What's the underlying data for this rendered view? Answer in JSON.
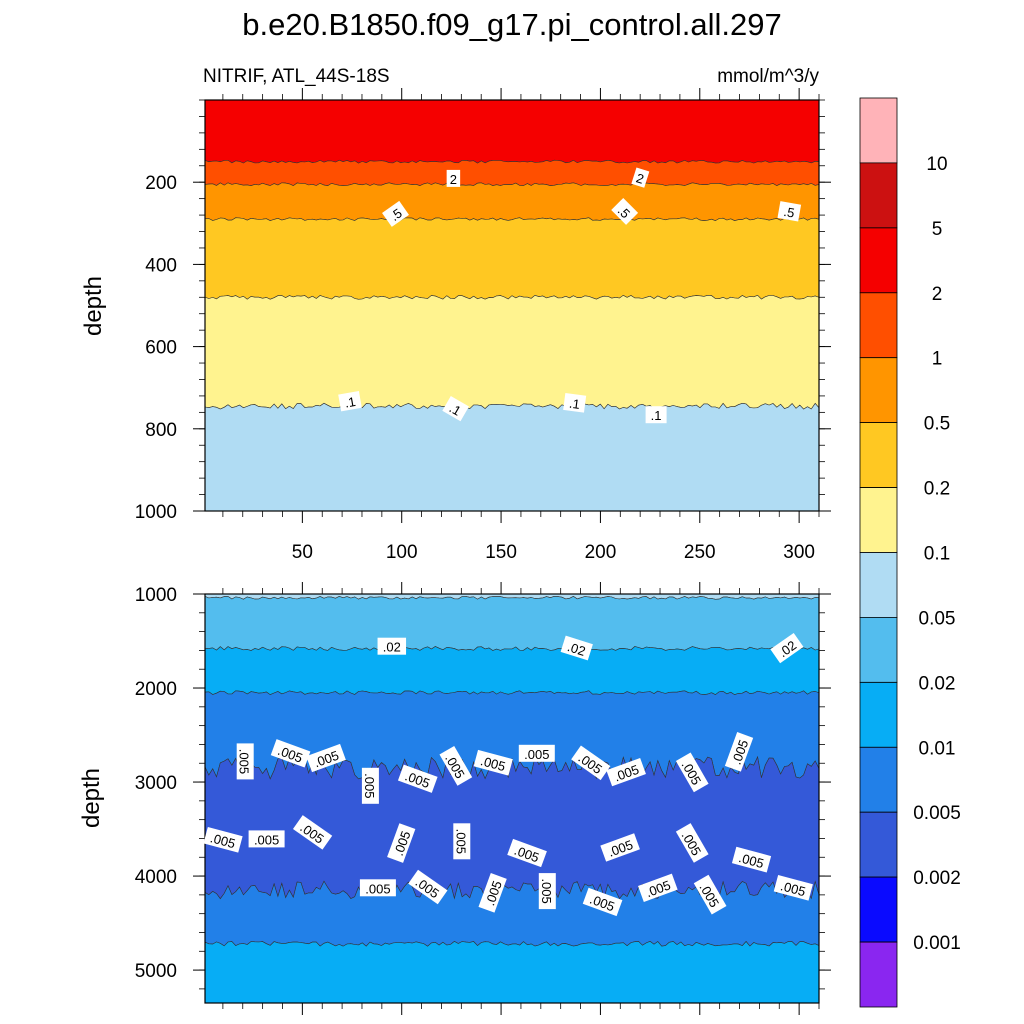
{
  "title": "b.e20.B1850.f09_g17.pi_control.all.297",
  "subtitle_left": "NITRIF, ATL_44S-18S",
  "subtitle_right": "mmol/m^3/y",
  "chart_data": [
    {
      "type": "contour",
      "panel": "upper",
      "ylabel": "depth",
      "xlabel": "",
      "xlim": [
        1,
        310
      ],
      "ylim": [
        1000,
        0
      ],
      "x_ticks": [
        "50",
        "100",
        "150",
        "200",
        "250",
        "300"
      ],
      "y_ticks": [
        "200",
        "400",
        "600",
        "800",
        "1000"
      ],
      "bands": [
        {
          "level_range": "2-5",
          "depth_top": 0,
          "depth_bottom": 150
        },
        {
          "level_range": "1-2",
          "depth_top": 150,
          "depth_bottom": 205
        },
        {
          "level_range": "0.5-1",
          "depth_top": 205,
          "depth_bottom": 290
        },
        {
          "level_range": "0.2-0.5",
          "depth_top": 290,
          "depth_bottom": 480
        },
        {
          "level_range": "0.1-0.2",
          "depth_top": 480,
          "depth_bottom": 745
        },
        {
          "level_range": "0.05-0.1",
          "depth_top": 745,
          "depth_bottom": 1000
        }
      ],
      "contour_labels": [
        {
          "text": "2",
          "x": 126,
          "depth": 192
        },
        {
          "text": "2",
          "x": 220,
          "depth": 190
        },
        {
          "text": ".5",
          "x": 97,
          "depth": 278
        },
        {
          "text": ".5",
          "x": 212,
          "depth": 272
        },
        {
          "text": ".5",
          "x": 295,
          "depth": 272
        },
        {
          "text": ".1",
          "x": 74,
          "depth": 734
        },
        {
          "text": ".1",
          "x": 127,
          "depth": 752
        },
        {
          "text": ".1",
          "x": 187,
          "depth": 738
        },
        {
          "text": ".1",
          "x": 228,
          "depth": 767
        }
      ]
    },
    {
      "type": "contour",
      "panel": "lower",
      "ylabel": "depth",
      "xlabel": "",
      "xlim": [
        1,
        310
      ],
      "ylim": [
        5350,
        1000
      ],
      "y_ticks": [
        "1000",
        "2000",
        "3000",
        "4000",
        "5000"
      ],
      "bands": [
        {
          "level_range": "0.05-0.1",
          "depth_top": 1000,
          "depth_bottom": 1040
        },
        {
          "level_range": "0.02-0.05",
          "depth_top": 1040,
          "depth_bottom": 1580
        },
        {
          "level_range": "0.01-0.02",
          "depth_top": 1580,
          "depth_bottom": 2050
        },
        {
          "level_range": "0.005-0.01",
          "depth_top": 2050,
          "depth_bottom": 2850
        },
        {
          "level_range": "0.002-0.005",
          "depth_top": 2850,
          "depth_bottom": 4150
        },
        {
          "level_range": "0.005-0.01",
          "depth_top": 4150,
          "depth_bottom": 4720
        },
        {
          "level_range": "0.01-0.02",
          "depth_top": 4720,
          "depth_bottom": 5350
        }
      ],
      "contour_labels": [
        {
          "text": ".02",
          "x": 95,
          "depth": 1560
        },
        {
          "text": ".02",
          "x": 188,
          "depth": 1580
        },
        {
          "text": ".02",
          "x": 294,
          "depth": 1580
        },
        {
          "text": ".005",
          "x": 21,
          "depth": 2780
        },
        {
          "text": ".005",
          "x": 44,
          "depth": 2700
        },
        {
          "text": ".005",
          "x": 62,
          "depth": 2750
        },
        {
          "text": ".005",
          "x": 127,
          "depth": 2830
        },
        {
          "text": ".005",
          "x": 146,
          "depth": 2800
        },
        {
          "text": ".005",
          "x": 168,
          "depth": 2700
        },
        {
          "text": ".005",
          "x": 195,
          "depth": 2800
        },
        {
          "text": ".005",
          "x": 270,
          "depth": 2680
        },
        {
          "text": ".005",
          "x": 84,
          "depth": 3040
        },
        {
          "text": ".005",
          "x": 108,
          "depth": 2970
        },
        {
          "text": ".005",
          "x": 213,
          "depth": 2900
        },
        {
          "text": ".005",
          "x": 246,
          "depth": 2900
        },
        {
          "text": ".005",
          "x": 10,
          "depth": 3620
        },
        {
          "text": ".005",
          "x": 32,
          "depth": 3610
        },
        {
          "text": ".005",
          "x": 55,
          "depth": 3540
        },
        {
          "text": ".005",
          "x": 100,
          "depth": 3650
        },
        {
          "text": ".005",
          "x": 130,
          "depth": 3630
        },
        {
          "text": ".005",
          "x": 163,
          "depth": 3760
        },
        {
          "text": ".005",
          "x": 210,
          "depth": 3700
        },
        {
          "text": ".005",
          "x": 246,
          "depth": 3650
        },
        {
          "text": ".005",
          "x": 276,
          "depth": 3830
        },
        {
          "text": ".005",
          "x": 88,
          "depth": 4130
        },
        {
          "text": ".005",
          "x": 113,
          "depth": 4120
        },
        {
          "text": ".005",
          "x": 146,
          "depth": 4180
        },
        {
          "text": ".005",
          "x": 173,
          "depth": 4160
        },
        {
          "text": ".005",
          "x": 201,
          "depth": 4280
        },
        {
          "text": ".005",
          "x": 229,
          "depth": 4130
        },
        {
          "text": ".005",
          "x": 255,
          "depth": 4200
        },
        {
          "text": ".005",
          "x": 297,
          "depth": 4130
        }
      ]
    }
  ],
  "colorbar": {
    "labels": [
      "10",
      "5",
      "2",
      "1",
      "0.5",
      "0.2",
      "0.1",
      "0.05",
      "0.02",
      "0.01",
      "0.005",
      "0.002",
      "0.001"
    ],
    "colors": [
      "#FFB3B8",
      "#CC1111",
      "#F50000",
      "#FF4F00",
      "#FF9500",
      "#FFC822",
      "#FFF38F",
      "#B0DCF3",
      "#53BDEE",
      "#07ADF5",
      "#2280E8",
      "#3459D8",
      "#0A0AFF",
      "#8A26F0"
    ]
  }
}
